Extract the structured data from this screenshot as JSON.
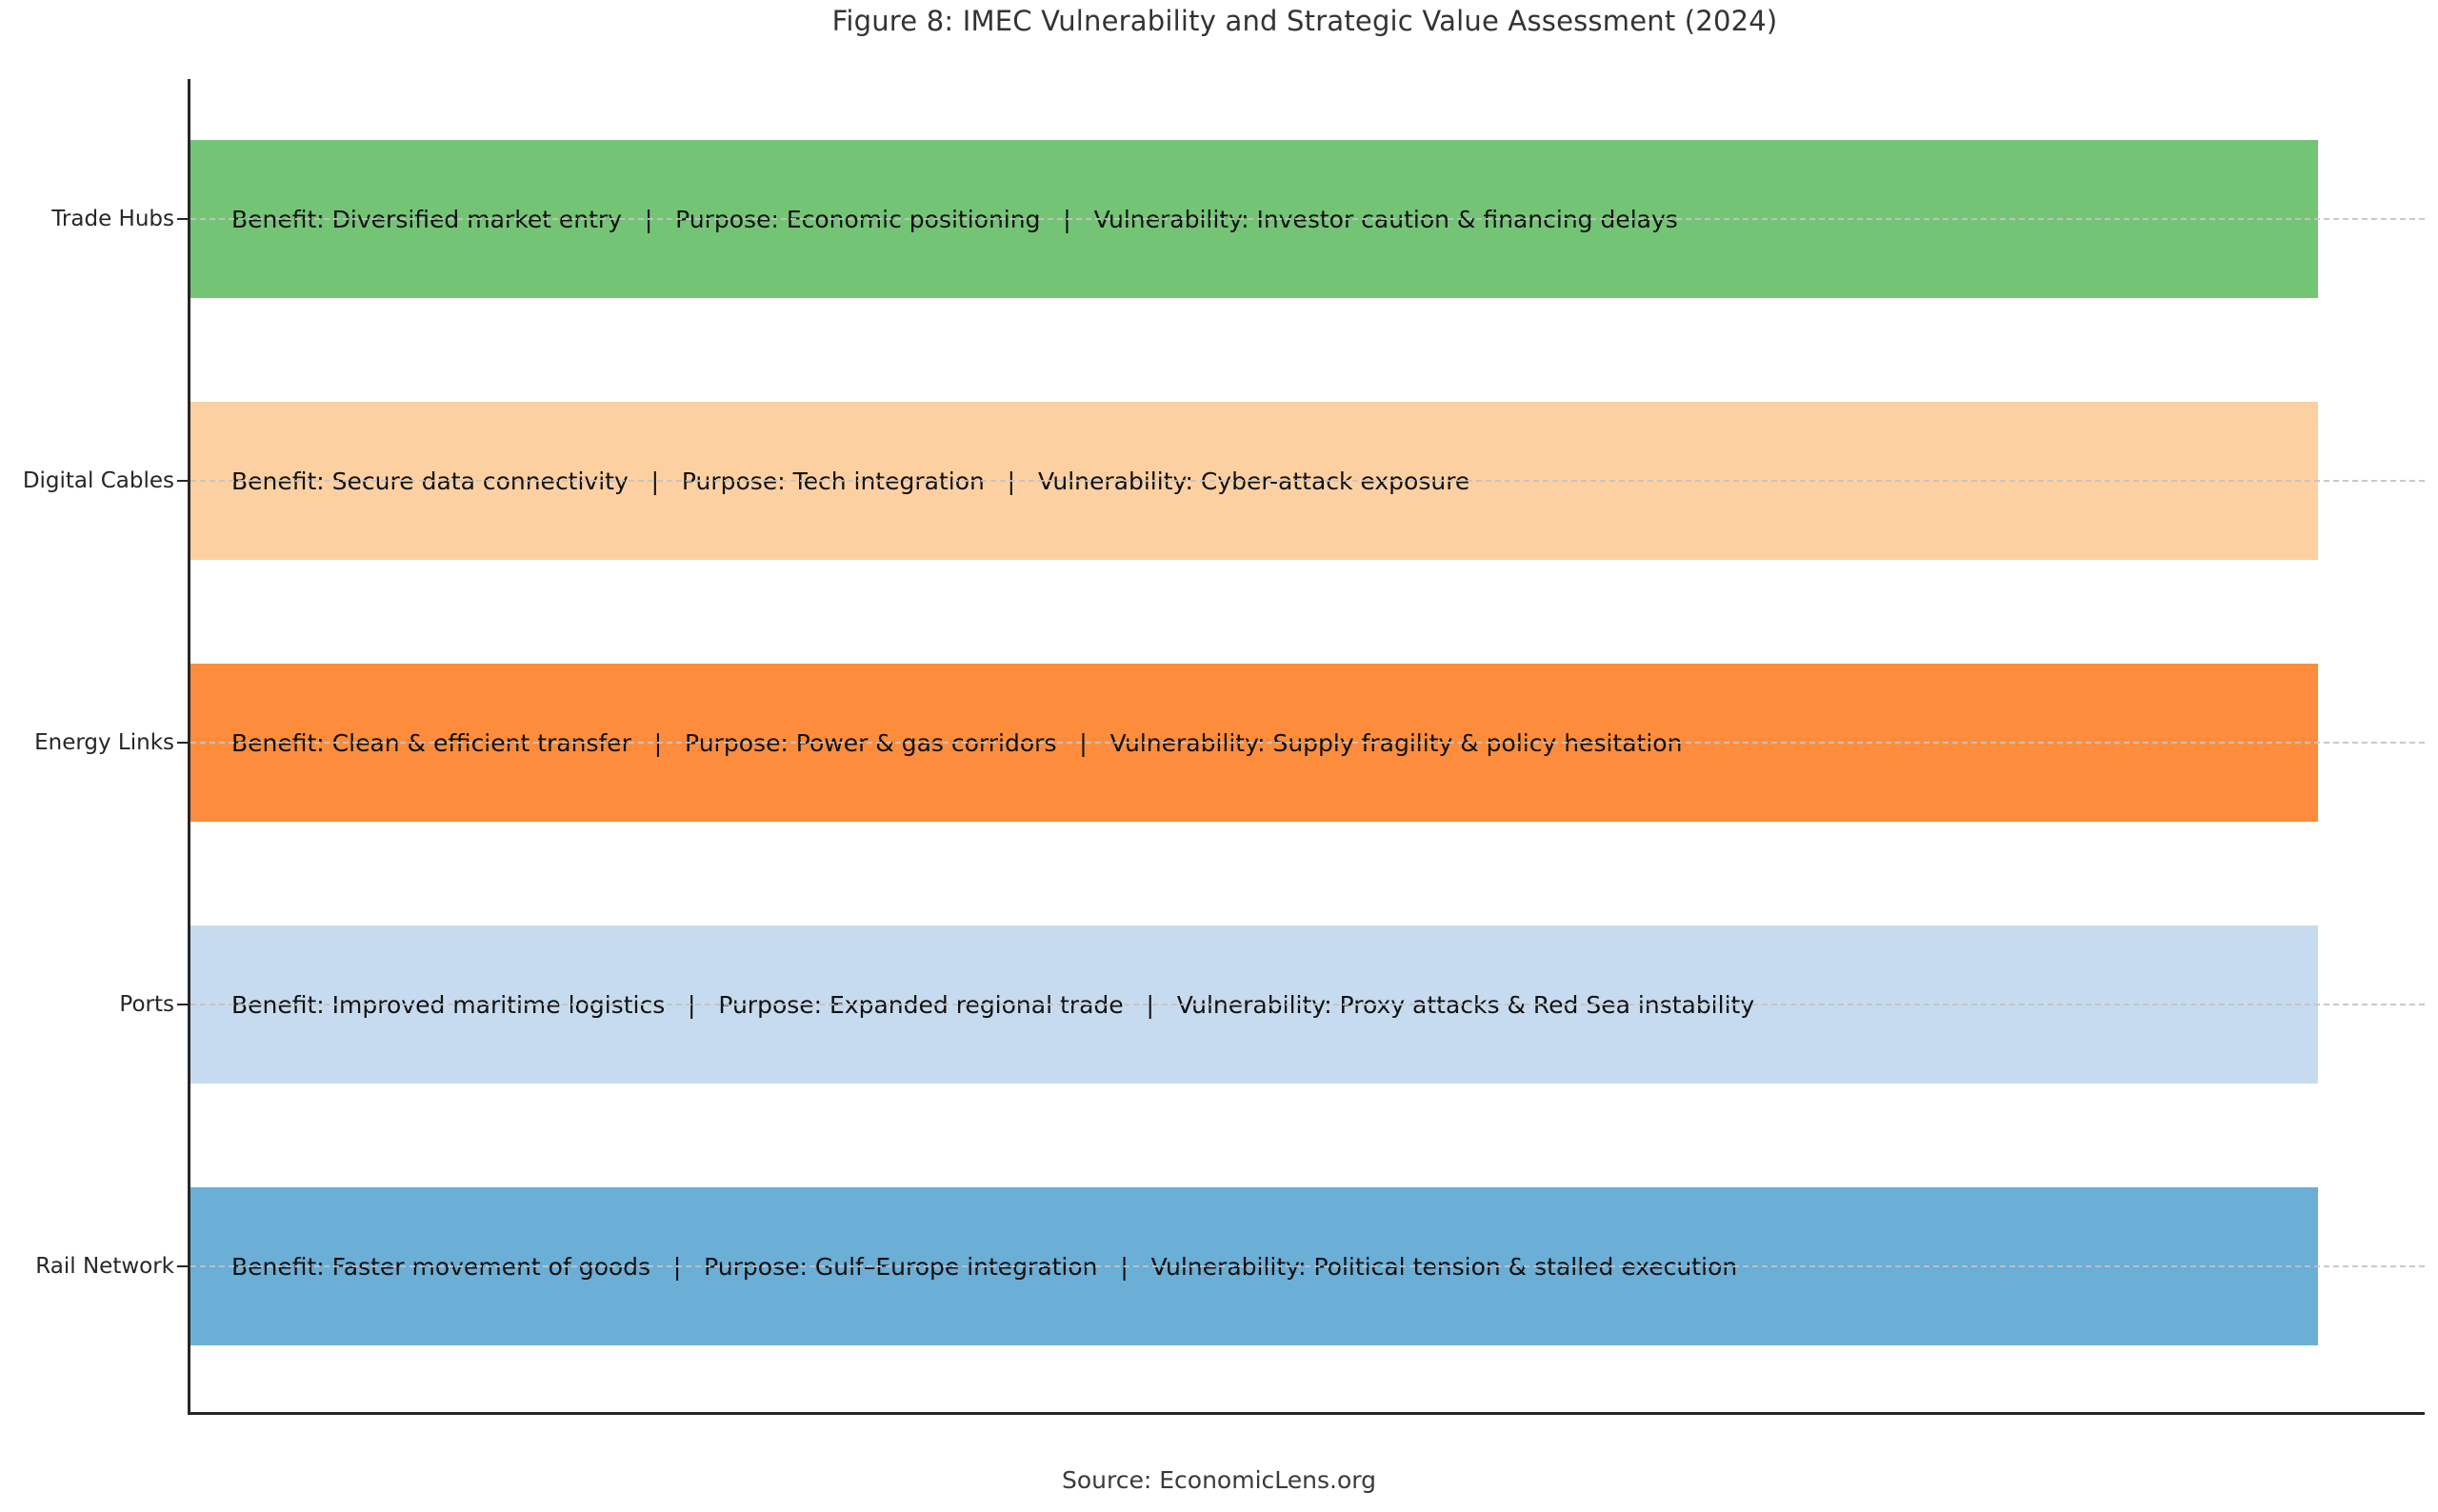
{
  "figure": {
    "title": "Figure 8: IMEC Vulnerability and Strategic Value Assessment (2024)",
    "source": "Source: EconomicLens.org"
  },
  "chart_data": {
    "type": "bar",
    "orientation": "horizontal",
    "title": "Figure 8: IMEC Vulnerability and Strategic Value Assessment (2024)",
    "xlabel": "",
    "ylabel": "",
    "categories": [
      "Trade Hubs",
      "Digital Cables",
      "Energy Links",
      "Ports",
      "Rail Network"
    ],
    "values": [
      1.0,
      1.0,
      1.0,
      1.0,
      1.0
    ],
    "xlim": [
      0,
      1.05
    ],
    "bar_colors": [
      "#74c476",
      "#fdd0a2",
      "#fd8d3c",
      "#c6dbef",
      "#6baed6"
    ],
    "grid": "horizontal dashed light-gray gridline at each category center, drawn over bars; no x-axis ticks; only left and bottom spines",
    "legend": "none",
    "note": "Qualitative assessment chart: all five bars are equal length; each bar carries a text annotation of Benefit | Purpose | Vulnerability",
    "bar_labels": [
      "Benefit: Diversified market entry   |   Purpose: Economic positioning   |   Vulnerability: Investor caution & financing delays",
      "Benefit: Secure data connectivity   |   Purpose: Tech integration   |   Vulnerability: Cyber-attack exposure",
      "Benefit: Clean & efficient transfer   |   Purpose: Power & gas corridors   |   Vulnerability: Supply fragility & policy hesitation",
      "Benefit: Improved maritime logistics   |   Purpose: Expanded regional trade   |   Vulnerability: Proxy attacks & Red Sea instability",
      "Benefit: Faster movement of goods   |   Purpose: Gulf–Europe integration   |   Vulnerability: Political tension & stalled execution"
    ],
    "source": "Source: EconomicLens.org"
  },
  "bars": [
    {
      "category": "Trade Hubs",
      "color": "#74c476",
      "benefit": "Diversified market entry",
      "purpose": "Economic positioning",
      "vulnerability": "Investor caution & financing delays",
      "label": "Benefit: Diversified market entry   |   Purpose: Economic positioning   |   Vulnerability: Investor caution & financing delays"
    },
    {
      "category": "Digital Cables",
      "color": "#fdd0a2",
      "benefit": "Secure data connectivity",
      "purpose": "Tech integration",
      "vulnerability": "Cyber-attack exposure",
      "label": "Benefit: Secure data connectivity   |   Purpose: Tech integration   |   Vulnerability: Cyber-attack exposure"
    },
    {
      "category": "Energy Links",
      "color": "#fd8d3c",
      "benefit": "Clean & efficient transfer",
      "purpose": "Power & gas corridors",
      "vulnerability": "Supply fragility & policy hesitation",
      "label": "Benefit: Clean & efficient transfer   |   Purpose: Power & gas corridors   |   Vulnerability: Supply fragility & policy hesitation"
    },
    {
      "category": "Ports",
      "color": "#c6dbef",
      "benefit": "Improved maritime logistics",
      "purpose": "Expanded regional trade",
      "vulnerability": "Proxy attacks & Red Sea instability",
      "label": "Benefit: Improved maritime logistics   |   Purpose: Expanded regional trade   |   Vulnerability: Proxy attacks & Red Sea instability"
    },
    {
      "category": "Rail Network",
      "color": "#6baed6",
      "benefit": "Faster movement of goods",
      "purpose": "Gulf–Europe integration",
      "vulnerability": "Political tension & stalled execution",
      "label": "Benefit: Faster movement of goods   |   Purpose: Gulf–Europe integration   |   Vulnerability: Political tension & stalled execution"
    }
  ]
}
